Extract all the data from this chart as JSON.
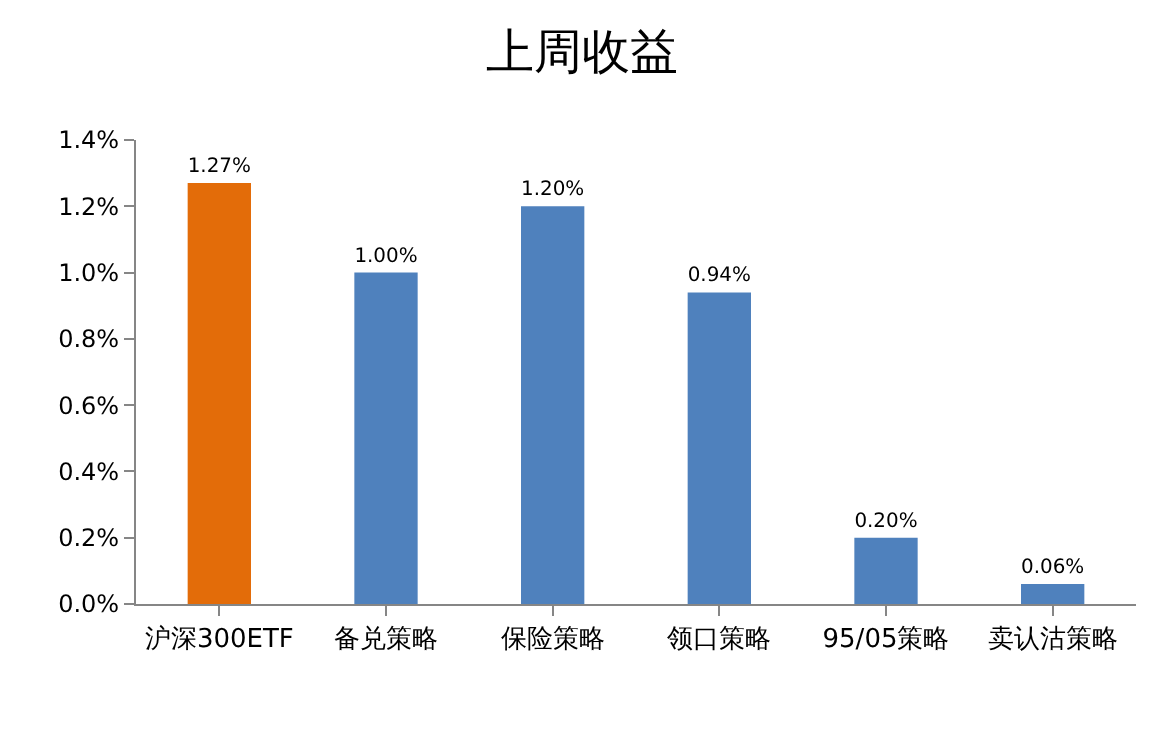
{
  "chart_data": {
    "type": "bar",
    "title": "上周收益",
    "categories": [
      "沪深300ETF",
      "备兑策略",
      "保险策略",
      "领口策略",
      "95/05策略",
      "卖认沽策略"
    ],
    "values": [
      1.27,
      1.0,
      1.2,
      0.94,
      0.2,
      0.06
    ],
    "colors": [
      "#e36c09",
      "#4f81bd",
      "#4f81bd",
      "#4f81bd",
      "#4f81bd",
      "#4f81bd"
    ],
    "value_labels": [
      "1.27%",
      "1.00%",
      "1.20%",
      "0.94%",
      "0.20%",
      "0.06%"
    ],
    "ylim": [
      0,
      1.4
    ],
    "yticks": [
      {
        "value": 0,
        "label": "0.0%"
      },
      {
        "value": 0.2,
        "label": "0.2%"
      },
      {
        "value": 0.4,
        "label": "0.4%"
      },
      {
        "value": 0.6,
        "label": "0.6%"
      },
      {
        "value": 0.8,
        "label": "0.8%"
      },
      {
        "value": 1.0,
        "label": "1.0%"
      },
      {
        "value": 1.2,
        "label": "1.2%"
      },
      {
        "value": 1.4,
        "label": "1.4%"
      }
    ],
    "legend": false
  }
}
